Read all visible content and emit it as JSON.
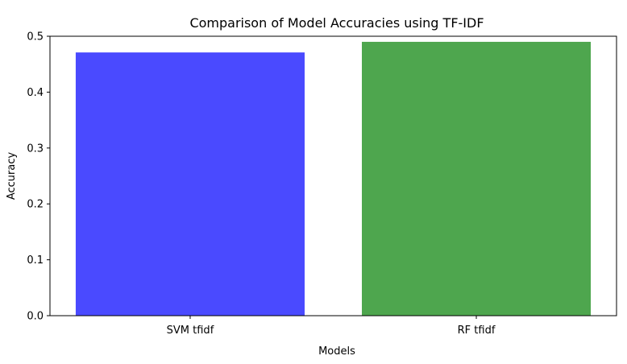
{
  "chart_data": {
    "type": "bar",
    "title": "Comparison of Model Accuracies using TF-IDF",
    "xlabel": "Models",
    "ylabel": "Accuracy",
    "categories": [
      "SVM tfidf",
      "RF tfidf"
    ],
    "values": [
      0.471,
      0.49
    ],
    "colors": [
      "#4a4aff",
      "#4ea64e"
    ],
    "ylim": [
      0,
      0.5
    ],
    "yticks": [
      0.0,
      0.1,
      0.2,
      0.3,
      0.4,
      0.5
    ],
    "ytick_labels": [
      "0.0",
      "0.1",
      "0.2",
      "0.3",
      "0.4",
      "0.5"
    ],
    "grid": false,
    "legend": "none"
  }
}
